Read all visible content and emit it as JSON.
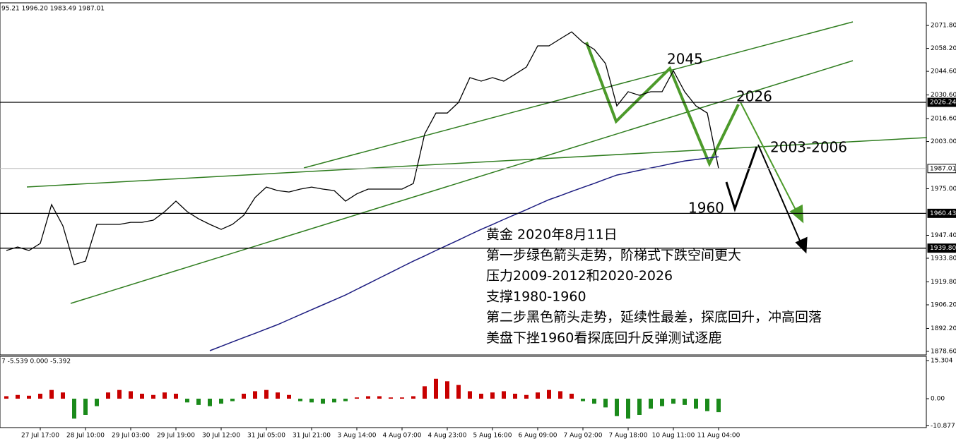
{
  "chart_data": [
    {
      "type": "line",
      "header": "95.21 1996.20 1983.49 1987.01",
      "categories": [
        null,
        null,
        null,
        "27 Jul 17:00",
        null,
        null,
        null,
        "28 Jul 10:00",
        null,
        null,
        null,
        "29 Jul 03:00",
        null,
        null,
        null,
        "29 Jul 19:00",
        null,
        null,
        null,
        "30 Jul 12:00",
        null,
        null,
        null,
        "31 Jul 05:00",
        null,
        null,
        null,
        "31 Jul 21:00",
        null,
        null,
        null,
        "3 Aug 14:00",
        null,
        null,
        null,
        "4 Aug 07:00",
        null,
        null,
        null,
        "4 Aug 23:00",
        null,
        null,
        null,
        "5 Aug 16:00",
        null,
        null,
        null,
        "6 Aug 09:00",
        null,
        null,
        null,
        "7 Aug 02:00",
        null,
        null,
        null,
        "7 Aug 18:00",
        null,
        null,
        null,
        "10 Aug 11:00",
        null,
        null,
        null,
        "11 Aug 04:00"
      ],
      "series": [
        {
          "color": "#000000",
          "values": [
            1938.4,
            1940.5,
            1938.4,
            1942.6,
            1965.6,
            1953.0,
            1930.0,
            1932.1,
            1953.9,
            1953.9,
            1953.9,
            1955.1,
            1955.1,
            1956.4,
            1961.4,
            1967.7,
            1961.4,
            1957.2,
            1953.9,
            1950.9,
            1953.9,
            1959.3,
            1969.8,
            1976.0,
            1973.9,
            1973.1,
            1974.8,
            1976.0,
            1974.8,
            1973.9,
            1967.7,
            1972.0,
            1974.8,
            1974.8,
            1974.8,
            1974.8,
            1978.1,
            2007.4,
            2019.9,
            2019.9,
            2026.2,
            2040.9,
            2038.8,
            2040.9,
            2038.8,
            2042.9,
            2047.1,
            2059.7,
            2059.7,
            2063.9,
            2068.0,
            2061.8,
            2057.6,
            2049.2,
            2024.1,
            2032.5,
            2030.4,
            2032.5,
            2032.5,
            2045.0,
            2032.5,
            2024.1,
            2019.9,
            1987.01
          ]
        },
        {
          "color": "#1c1c80",
          "values": [
            null,
            null,
            null,
            null,
            null,
            null,
            null,
            null,
            null,
            null,
            null,
            null,
            null,
            null,
            null,
            null,
            null,
            null,
            1879.0,
            1881.6,
            1884.2,
            1886.8,
            1889.3,
            1891.9,
            1894.5,
            1897.4,
            1900.4,
            1903.3,
            1906.2,
            1909.1,
            1912.0,
            1915.4,
            1918.7,
            1922.1,
            1925.4,
            1928.8,
            1932.1,
            1935.2,
            1938.4,
            1941.5,
            1944.6,
            1947.8,
            1950.9,
            1953.8,
            1956.8,
            1959.7,
            1962.6,
            1965.6,
            1968.5,
            1970.9,
            1973.4,
            1975.8,
            1978.2,
            1980.7,
            1983.1,
            1984.5,
            1985.9,
            1987.3,
            1988.7,
            1990.1,
            1991.5,
            1992.3,
            1993.2,
            1994.0
          ]
        }
      ],
      "ylim": [
        1876.5,
        2084.8
      ],
      "yticks": [
        {
          "value": 2071.8,
          "label": "2071.80"
        },
        {
          "value": 2058.2,
          "label": "2058.20"
        },
        {
          "value": 2044.6,
          "label": "2044.60"
        },
        {
          "value": 2030.6,
          "label": "2030.60"
        },
        {
          "value": 2016.6,
          "label": "2016.60"
        },
        {
          "value": 2003.0,
          "label": "2003.00"
        },
        {
          "value": 1975.0,
          "label": "1975.00"
        },
        {
          "value": 1947.4,
          "label": "1947.40"
        },
        {
          "value": 1933.8,
          "label": "1933.80"
        },
        {
          "value": 1919.8,
          "label": "1919.80"
        },
        {
          "value": 1906.2,
          "label": "1906.20"
        },
        {
          "value": 1892.2,
          "label": "1892.20"
        },
        {
          "value": 1878.6,
          "label": "1878.60"
        }
      ],
      "levels": [
        2026.24,
        1987.01,
        1960.43,
        {
          "value": 1939.8,
          "label": "1939.80"
        }
      ],
      "annotations": [
        "2045",
        "2026",
        "2003-2006",
        "1960"
      ],
      "note_lines": [
        "黄金 2020年8月11日",
        "第一步绿色箭头走势，阶梯式下跌空间更大",
        "压力2009-2012和2020-2026",
        "支撑1980-1960",
        "第二步黑色箭头走势，延续性最差，探底回升，冲高回落",
        "美盘下挫1960看探底回升反弹测试逐鹿"
      ]
    },
    {
      "type": "bar",
      "header": "7 -5.539 0.000 -5.392",
      "color": "#c80000",
      "negative_color": "#1a8a1a",
      "values": [
        1.0,
        1.5,
        1.2,
        2.0,
        3.5,
        2.5,
        -8.0,
        -6.5,
        -3.0,
        2.5,
        3.5,
        3.0,
        2.0,
        1.5,
        2.5,
        2.0,
        -1.5,
        -2.5,
        -3.0,
        -2.0,
        -1.0,
        2.0,
        3.0,
        3.5,
        2.5,
        1.5,
        -1.0,
        -1.5,
        -2.0,
        -1.5,
        -1.0,
        0.5,
        1.0,
        1.0,
        0.5,
        0.5,
        1.0,
        5.0,
        8.0,
        7.0,
        5.5,
        3.0,
        2.0,
        2.5,
        3.0,
        2.0,
        1.5,
        2.5,
        3.5,
        3.0,
        2.0,
        -1.0,
        -2.0,
        -3.5,
        -7.0,
        -8.0,
        -6.5,
        -4.0,
        -3.0,
        -2.0,
        -2.5,
        -4.0,
        -5.0,
        -5.4
      ],
      "ylim": [
        -11.6,
        17.0
      ],
      "yticks": [
        15.304,
        {
          "value": 0,
          "label": "0.00"
        },
        -10.877
      ]
    }
  ]
}
